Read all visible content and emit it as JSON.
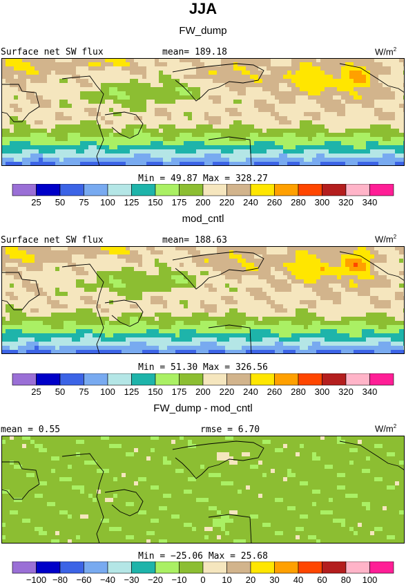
{
  "title": "JJA",
  "panels": [
    {
      "subtitle": "FW_dump",
      "left_header": "Surface net SW flux",
      "mean_label": "mean= 189.18",
      "right_label": "",
      "units": "W/m",
      "units_exp": "2",
      "minmax": "Min =  49.87 Max = 328.27",
      "field": "abs"
    },
    {
      "subtitle": "mod_cntl",
      "left_header": "Surface net SW flux",
      "mean_label": "mean= 188.63",
      "right_label": "",
      "units": "W/m",
      "units_exp": "2",
      "minmax": "Min =  51.30 Max = 326.56",
      "field": "abs"
    },
    {
      "subtitle": "FW_dump - mod_cntl",
      "left_header": "mean =   0.55",
      "mean_label": "",
      "right_label": "rmse =   6.70",
      "units": "W/m",
      "units_exp": "2",
      "minmax": "Min = −25.06 Max =  25.68",
      "field": "diff"
    }
  ],
  "colorbars": {
    "abs": {
      "colors": [
        "#9a6fd6",
        "#0000c8",
        "#3c64e6",
        "#78aaf0",
        "#b4e6e6",
        "#1eb4aa",
        "#aaf064",
        "#8cbe32",
        "#f5e6be",
        "#d2b48c",
        "#ffe600",
        "#ffa000",
        "#ff4600",
        "#b41e1e",
        "#ffb4c8",
        "#ff1e96"
      ],
      "labels": [
        "25",
        "50",
        "75",
        "100",
        "125",
        "150",
        "175",
        "200",
        "220",
        "240",
        "260",
        "280",
        "300",
        "320",
        "340"
      ]
    },
    "diff": {
      "colors": [
        "#9a6fd6",
        "#0000c8",
        "#3c64e6",
        "#78aaf0",
        "#b4e6e6",
        "#1eb4aa",
        "#aaf064",
        "#8cbe32",
        "#f5e6be",
        "#d2b48c",
        "#ffe600",
        "#ffa000",
        "#ff4600",
        "#b41e1e",
        "#ffb4c8",
        "#ff1e96"
      ],
      "labels": [
        "−100",
        "−80",
        "−60",
        "−40",
        "−30",
        "−20",
        "−10",
        "0",
        "10",
        "20",
        "30",
        "40",
        "60",
        "80",
        "100"
      ]
    }
  },
  "chart_data": [
    {
      "type": "heatmap",
      "title": "FW_dump",
      "variable": "Surface net SW flux",
      "units": "W/m2",
      "mean": 189.18,
      "min": 49.87,
      "max": 328.27,
      "levels": [
        25,
        50,
        75,
        100,
        125,
        150,
        175,
        200,
        220,
        240,
        260,
        280,
        300,
        320,
        340
      ]
    },
    {
      "type": "heatmap",
      "title": "mod_cntl",
      "variable": "Surface net SW flux",
      "units": "W/m2",
      "mean": 188.63,
      "min": 51.3,
      "max": 326.56,
      "levels": [
        25,
        50,
        75,
        100,
        125,
        150,
        175,
        200,
        220,
        240,
        260,
        280,
        300,
        320,
        340
      ]
    },
    {
      "type": "heatmap",
      "title": "FW_dump - mod_cntl",
      "units": "W/m2",
      "mean": 0.55,
      "rmse": 6.7,
      "min": -25.06,
      "max": 25.68,
      "levels": [
        -100,
        -80,
        -60,
        -40,
        -30,
        -20,
        -10,
        0,
        10,
        20,
        30,
        40,
        60,
        80,
        100
      ]
    }
  ]
}
